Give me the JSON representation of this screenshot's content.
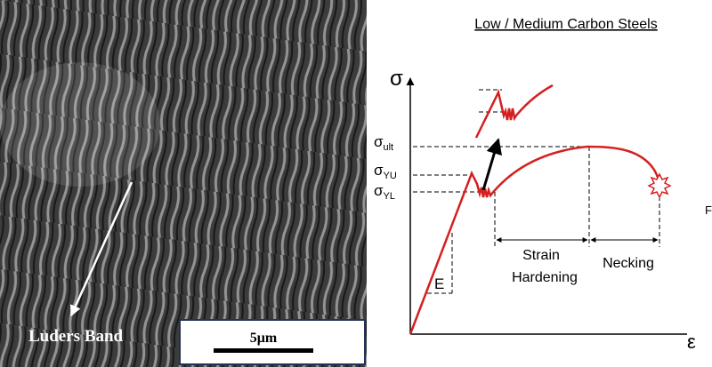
{
  "micrograph": {
    "label": "Luders Band",
    "scale_bar": "5μm"
  },
  "diagram": {
    "title": "Low / Medium Carbon Steels",
    "y_axis": "σ",
    "x_axis": "ε",
    "sigma_ult": {
      "symbol": "σ",
      "sub": "ult"
    },
    "sigma_yu": {
      "symbol": "σ",
      "sub": "YU"
    },
    "sigma_yl": {
      "symbol": "σ",
      "sub": "YL"
    },
    "modulus": "E",
    "strain_hardening": [
      "Strain",
      "Hardening"
    ],
    "necking": "Necking",
    "edge_text": "F"
  }
}
